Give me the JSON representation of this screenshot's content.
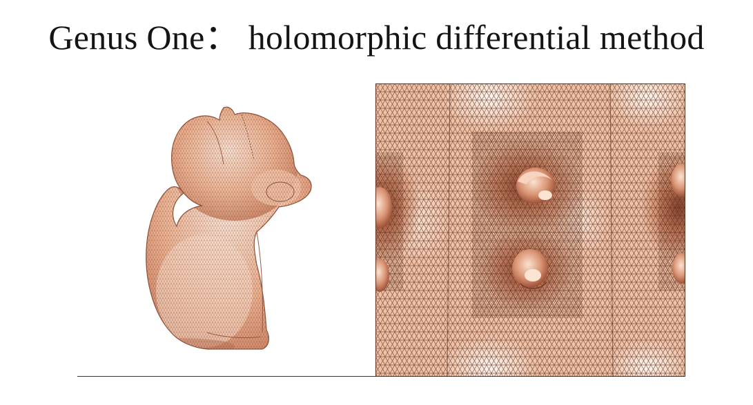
{
  "slide": {
    "title": "Genus One：  holomorphic differential method"
  },
  "colors": {
    "mesh_base": "#e8a582",
    "mesh_highlight": "#fbe6d8",
    "mesh_shadow": "#b8684a",
    "wire": "#6e3a28",
    "baseline": "#333333"
  }
}
